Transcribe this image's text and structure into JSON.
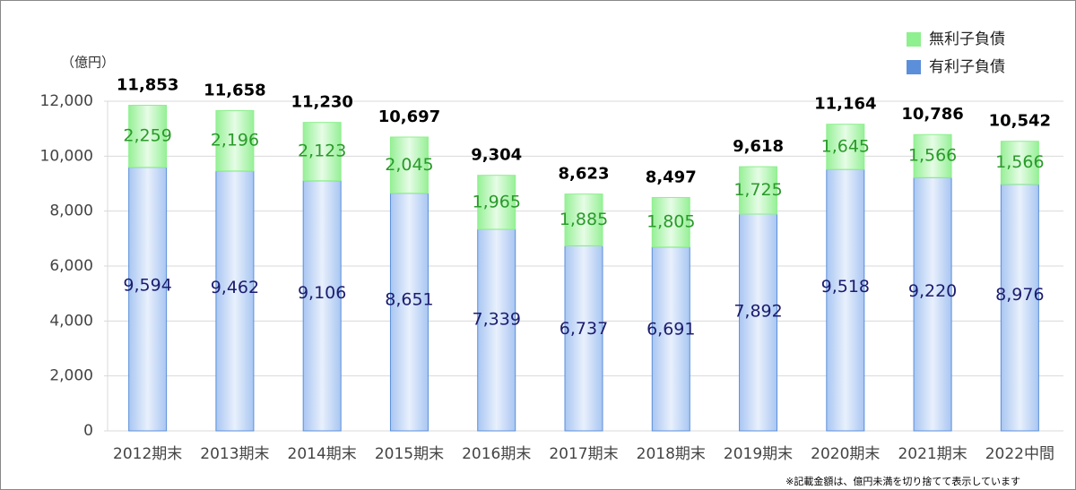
{
  "chart_data": {
    "type": "stacked_bar",
    "unit_label": "（億円）",
    "footnote": "※記載金額は、億円未満を切り捨てて表示しています",
    "categories": [
      "2012期末",
      "2013期末",
      "2014期末",
      "2015期末",
      "2016期末",
      "2017期末",
      "2018期末",
      "2019期末",
      "2020期末",
      "2021期末",
      "2022中間"
    ],
    "series": [
      {
        "name": "有利子負債",
        "color": "#5b8fd9",
        "label_color": "#1c1c6e",
        "values": [
          9594,
          9462,
          9106,
          8651,
          7339,
          6737,
          6691,
          7892,
          9518,
          9220,
          8976
        ],
        "value_labels": [
          "9,594",
          "9,462",
          "9,106",
          "8,651",
          "7,339",
          "6,737",
          "6,691",
          "7,892",
          "9,518",
          "9,220",
          "8,976"
        ]
      },
      {
        "name": "無利子負債",
        "color": "#8ef08e",
        "label_color": "#2a9a2a",
        "values": [
          2259,
          2196,
          2123,
          2045,
          1965,
          1885,
          1805,
          1725,
          1645,
          1566,
          1566
        ],
        "value_labels": [
          "2,259",
          "2,196",
          "2,123",
          "2,045",
          "1,965",
          "1,885",
          "1,805",
          "1,725",
          "1,645",
          "1,566",
          "1,566"
        ]
      }
    ],
    "totals": [
      11853,
      11658,
      11230,
      10697,
      9304,
      8623,
      8497,
      9618,
      11164,
      10786,
      10542
    ],
    "total_labels": [
      "11,853",
      "11,658",
      "11,230",
      "10,697",
      "9,304",
      "8,623",
      "8,497",
      "9,618",
      "11,164",
      "10,786",
      "10,542"
    ],
    "ylim": [
      0,
      12000
    ],
    "yticks": [
      0,
      {
        "value": 2000,
        "label": "2,000"
      },
      {
        "value": 4000,
        "label": "4,000"
      },
      {
        "value": 6000,
        "label": "6,000"
      },
      {
        "value": 8000,
        "label": "8,000"
      },
      {
        "value": 10000,
        "label": "10,000"
      },
      {
        "value": 12000,
        "label": "12,000"
      }
    ],
    "grid": true
  }
}
